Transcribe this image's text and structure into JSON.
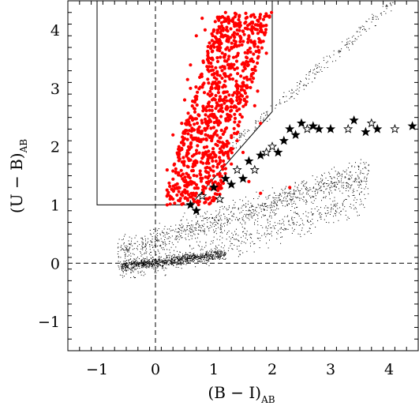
{
  "chart_data": {
    "type": "scatter",
    "title": "",
    "xlabel": "(B − I)",
    "xlabel_subscript": "AB",
    "ylabel": "(U − B)",
    "ylabel_subscript": "AB",
    "xlim": [
      -1.5,
      4.5
    ],
    "ylim": [
      -1.5,
      4.5
    ],
    "x_ticks": [
      -1,
      0,
      1,
      2,
      3,
      4
    ],
    "y_ticks": [
      -1,
      0,
      1,
      2,
      3,
      4
    ],
    "x_tick_labels": [
      "−1",
      "0",
      "1",
      "2",
      "3",
      "4"
    ],
    "y_tick_labels": [
      "−1",
      "0",
      "1",
      "2",
      "3",
      "4"
    ],
    "grid": false,
    "legend": "none",
    "colors": {
      "selected": "#ff0000",
      "field": "#000000",
      "stars": "#000000"
    },
    "reference_lines": [
      {
        "name": "x-zero-dashed",
        "style": "dashed",
        "points": [
          [
            0,
            -1.5
          ],
          [
            0,
            4.5
          ]
        ]
      },
      {
        "name": "y-zero-dashed",
        "style": "dashed",
        "points": [
          [
            -1.5,
            0
          ],
          [
            4.5,
            0
          ]
        ]
      }
    ],
    "selection_region": {
      "points": [
        [
          -1,
          4.5
        ],
        [
          -1,
          1
        ],
        [
          0.6,
          1
        ],
        [
          2,
          2.6
        ],
        [
          2,
          4.5
        ]
      ]
    },
    "series": [
      {
        "marker": "dot-red",
        "points": [
          [
            0.2,
            1.6
          ],
          [
            0.3,
            2.2
          ],
          [
            0.4,
            1.3
          ],
          [
            0.5,
            2.8
          ],
          [
            0.6,
            3.4
          ],
          [
            0.7,
            3.9
          ],
          [
            0.8,
            4.2
          ],
          [
            0.9,
            3.6
          ],
          [
            1.0,
            2.5
          ],
          [
            1.1,
            3.1
          ],
          [
            1.2,
            4.3
          ],
          [
            1.3,
            3.7
          ],
          [
            1.4,
            2.9
          ],
          [
            1.5,
            3.3
          ],
          [
            1.6,
            3.9
          ],
          [
            1.7,
            2.7
          ],
          [
            0.8,
            1.8
          ],
          [
            1.0,
            1.5
          ],
          [
            0.4,
            1.9
          ],
          [
            0.6,
            2.5
          ],
          [
            1.2,
            2.3
          ],
          [
            1.4,
            2.1
          ],
          [
            0.9,
            2.9
          ],
          [
            1.1,
            1.9
          ],
          [
            0.3,
            1.1
          ],
          [
            0.5,
            1.4
          ],
          [
            0.7,
            1.2
          ],
          [
            1.3,
            1.7
          ],
          [
            1.5,
            1.9
          ],
          [
            1.8,
            2.4
          ],
          [
            0.2,
            1.0
          ],
          [
            1.9,
            3.6
          ],
          [
            1.0,
            4.0
          ],
          [
            0.6,
            3.0
          ],
          [
            0.45,
            2.4
          ],
          [
            1.35,
            4.1
          ],
          [
            1.55,
            4.2
          ],
          [
            1.65,
            3.5
          ],
          [
            0.75,
            2.1
          ],
          [
            1.25,
            3.5
          ],
          [
            0.85,
            4.0
          ],
          [
            1.05,
            2.75
          ],
          [
            0.35,
            1.55
          ],
          [
            0.55,
            3.15
          ],
          [
            1.45,
            2.55
          ],
          [
            1.75,
            2.95
          ],
          [
            0.95,
            1.6
          ],
          [
            1.15,
            2.6
          ],
          [
            2.3,
            1.3
          ],
          [
            1.6,
            1.4
          ],
          [
            0.9,
            1.1
          ],
          [
            1.8,
            1.2
          ],
          [
            0.65,
            1.7
          ],
          [
            1.45,
            3.8
          ]
        ]
      },
      {
        "marker": "star-black",
        "points": [
          [
            0.6,
            1.0
          ],
          [
            0.8,
            1.15
          ],
          [
            1.0,
            1.3
          ],
          [
            1.2,
            1.45
          ],
          [
            1.4,
            1.6
          ],
          [
            1.6,
            1.75
          ],
          [
            1.8,
            1.85
          ],
          [
            2.0,
            2.0
          ],
          [
            2.2,
            2.1
          ],
          [
            2.4,
            2.2
          ],
          [
            2.6,
            2.3
          ],
          [
            2.8,
            2.3
          ],
          [
            3.0,
            2.3
          ],
          [
            3.3,
            2.3
          ],
          [
            3.6,
            2.25
          ],
          [
            3.8,
            2.3
          ],
          [
            4.1,
            2.3
          ],
          [
            4.4,
            2.35
          ],
          [
            1.5,
            1.45
          ],
          [
            1.9,
            1.9
          ],
          [
            2.3,
            2.3
          ],
          [
            2.5,
            2.4
          ],
          [
            1.1,
            1.1
          ],
          [
            0.7,
            0.9
          ],
          [
            3.4,
            2.45
          ],
          [
            1.7,
            1.6
          ],
          [
            2.1,
            1.9
          ],
          [
            2.7,
            2.35
          ],
          [
            3.7,
            2.4
          ],
          [
            1.3,
            1.35
          ]
        ]
      }
    ]
  }
}
